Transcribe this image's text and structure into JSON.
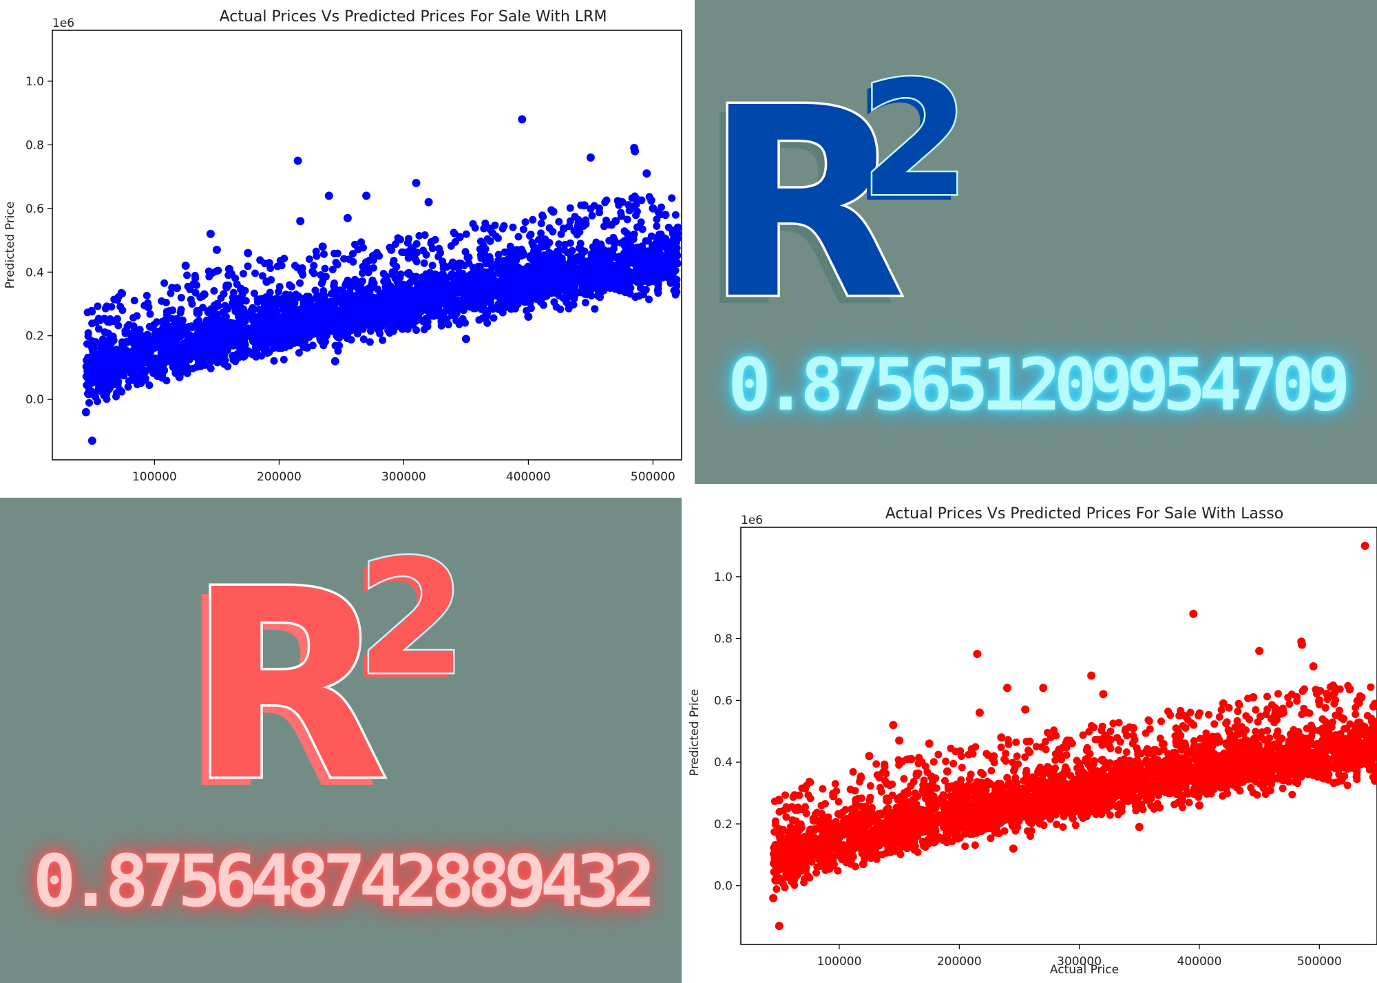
{
  "chart_data": [
    {
      "type": "scatter",
      "title": "Actual Prices Vs Predicted Prices For Sale With LRM",
      "xlabel": "",
      "ylabel": "Predicted Price",
      "offset_label": "1e6",
      "xlim": [
        18000,
        523000
      ],
      "ylim": [
        -0.19,
        1.16
      ],
      "xticks": [
        100000,
        200000,
        300000,
        400000,
        500000
      ],
      "yticks": [
        0.0,
        0.2,
        0.4,
        0.6,
        0.8,
        1.0
      ],
      "color": "#0000ff",
      "grid": false,
      "trend": {
        "x": [
          45000,
          100000,
          200000,
          300000,
          400000,
          520000
        ],
        "y": [
          0.08,
          0.15,
          0.23,
          0.3,
          0.37,
          0.44
        ]
      },
      "points": [
        {
          "x": 45000,
          "y": -0.04
        },
        {
          "x": 48000,
          "y": 0.13
        },
        {
          "x": 50000,
          "y": -0.13
        },
        {
          "x": 52000,
          "y": 0.02
        },
        {
          "x": 60000,
          "y": 0.14
        },
        {
          "x": 75000,
          "y": 0.17
        },
        {
          "x": 95000,
          "y": 0.29
        },
        {
          "x": 118000,
          "y": 0.35
        },
        {
          "x": 120000,
          "y": 0.07
        },
        {
          "x": 125000,
          "y": 0.42
        },
        {
          "x": 140000,
          "y": 0.33
        },
        {
          "x": 145000,
          "y": 0.52
        },
        {
          "x": 150000,
          "y": 0.47
        },
        {
          "x": 160000,
          "y": 0.41
        },
        {
          "x": 175000,
          "y": 0.46
        },
        {
          "x": 190000,
          "y": 0.37
        },
        {
          "x": 215000,
          "y": 0.75
        },
        {
          "x": 217000,
          "y": 0.56
        },
        {
          "x": 235000,
          "y": 0.48
        },
        {
          "x": 240000,
          "y": 0.64
        },
        {
          "x": 245000,
          "y": 0.12
        },
        {
          "x": 255000,
          "y": 0.57
        },
        {
          "x": 270000,
          "y": 0.64
        },
        {
          "x": 290000,
          "y": 0.47
        },
        {
          "x": 310000,
          "y": 0.68
        },
        {
          "x": 320000,
          "y": 0.62
        },
        {
          "x": 345000,
          "y": 0.51
        },
        {
          "x": 350000,
          "y": 0.19
        },
        {
          "x": 395000,
          "y": 0.88
        },
        {
          "x": 400000,
          "y": 0.26
        },
        {
          "x": 420000,
          "y": 0.59
        },
        {
          "x": 445000,
          "y": 0.61
        },
        {
          "x": 450000,
          "y": 0.76
        },
        {
          "x": 470000,
          "y": 0.56
        },
        {
          "x": 485000,
          "y": 0.79
        },
        {
          "x": 485500,
          "y": 0.78
        },
        {
          "x": 495000,
          "y": 0.71
        },
        {
          "x": 500000,
          "y": 0.6
        },
        {
          "x": 510000,
          "y": 0.58
        },
        {
          "x": 520000,
          "y": 0.54
        }
      ]
    },
    {
      "type": "scatter",
      "title": "Actual Prices Vs Predicted Prices For Sale With Lasso",
      "xlabel": "Actual Price",
      "ylabel": "Predicted Price",
      "offset_label": "1e6",
      "xlim": [
        18000,
        548000
      ],
      "ylim": [
        -0.19,
        1.16
      ],
      "xticks": [
        100000,
        200000,
        300000,
        400000,
        500000
      ],
      "yticks": [
        0.0,
        0.2,
        0.4,
        0.6,
        0.8,
        1.0
      ],
      "color": "#ff0000",
      "grid": false,
      "trend": {
        "x": [
          45000,
          100000,
          200000,
          300000,
          400000,
          548000
        ],
        "y": [
          0.08,
          0.15,
          0.23,
          0.3,
          0.37,
          0.45
        ]
      },
      "points": [
        {
          "x": 45000,
          "y": -0.04
        },
        {
          "x": 48000,
          "y": 0.13
        },
        {
          "x": 50000,
          "y": -0.13
        },
        {
          "x": 52000,
          "y": 0.02
        },
        {
          "x": 60000,
          "y": 0.14
        },
        {
          "x": 75000,
          "y": 0.17
        },
        {
          "x": 95000,
          "y": 0.29
        },
        {
          "x": 118000,
          "y": 0.35
        },
        {
          "x": 120000,
          "y": 0.07
        },
        {
          "x": 125000,
          "y": 0.42
        },
        {
          "x": 140000,
          "y": 0.33
        },
        {
          "x": 145000,
          "y": 0.52
        },
        {
          "x": 150000,
          "y": 0.47
        },
        {
          "x": 160000,
          "y": 0.41
        },
        {
          "x": 175000,
          "y": 0.46
        },
        {
          "x": 190000,
          "y": 0.37
        },
        {
          "x": 215000,
          "y": 0.75
        },
        {
          "x": 217000,
          "y": 0.56
        },
        {
          "x": 235000,
          "y": 0.48
        },
        {
          "x": 240000,
          "y": 0.64
        },
        {
          "x": 245000,
          "y": 0.12
        },
        {
          "x": 255000,
          "y": 0.57
        },
        {
          "x": 270000,
          "y": 0.64
        },
        {
          "x": 290000,
          "y": 0.47
        },
        {
          "x": 310000,
          "y": 0.68
        },
        {
          "x": 320000,
          "y": 0.62
        },
        {
          "x": 345000,
          "y": 0.51
        },
        {
          "x": 350000,
          "y": 0.19
        },
        {
          "x": 395000,
          "y": 0.88
        },
        {
          "x": 400000,
          "y": 0.26
        },
        {
          "x": 420000,
          "y": 0.59
        },
        {
          "x": 445000,
          "y": 0.61
        },
        {
          "x": 450000,
          "y": 0.76
        },
        {
          "x": 470000,
          "y": 0.56
        },
        {
          "x": 485000,
          "y": 0.79
        },
        {
          "x": 485500,
          "y": 0.78
        },
        {
          "x": 495000,
          "y": 0.71
        },
        {
          "x": 500000,
          "y": 0.6
        },
        {
          "x": 520000,
          "y": 0.54
        },
        {
          "x": 535000,
          "y": 0.61
        },
        {
          "x": 538000,
          "y": 1.1
        },
        {
          "x": 545000,
          "y": 0.58
        }
      ]
    }
  ],
  "r2_cards": {
    "lrm": {
      "symbol": "R",
      "superscript": "2",
      "value": "0.875651209954709",
      "fill": "#0047ab",
      "shadow": "#5f7f7a",
      "value_color": "#b8fbff"
    },
    "lasso": {
      "symbol": "R",
      "superscript": "2",
      "value": "0.875648742889432",
      "fill": "#ff5a5a",
      "shadow": "#ff7070",
      "value_color": "#ffd0d0"
    }
  }
}
